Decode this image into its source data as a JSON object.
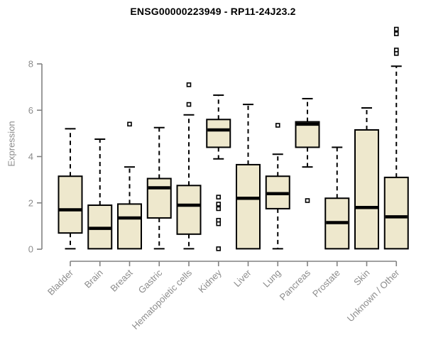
{
  "title": "ENSG00000223949 - RP11-24J23.2",
  "chart_data": {
    "type": "boxplot",
    "title": "ENSG00000223949 - RP11-24J23.2",
    "ylabel": "Expression",
    "xlabel": "",
    "ylim": [
      0,
      8
    ],
    "yticks": [
      0,
      2,
      4,
      6,
      8
    ],
    "grid": false,
    "legend": "none",
    "categories": [
      "Bladder",
      "Brain",
      "Breast",
      "Gastric",
      "Hematopoietic cells",
      "Kidney",
      "Liver",
      "Lung",
      "Pancreas",
      "Prostate",
      "Skin",
      "Unknown / Other"
    ],
    "series": [
      {
        "name": "Bladder",
        "whisker_low": 0.02,
        "q1": 0.7,
        "median": 1.7,
        "q3": 3.15,
        "whisker_high": 5.2,
        "outliers": []
      },
      {
        "name": "Brain",
        "whisker_low": 0.02,
        "q1": 0.02,
        "median": 0.9,
        "q3": 1.9,
        "whisker_high": 4.75,
        "outliers": []
      },
      {
        "name": "Breast",
        "whisker_low": 0.02,
        "q1": 0.02,
        "median": 1.35,
        "q3": 1.95,
        "whisker_high": 3.55,
        "outliers": [
          5.4
        ]
      },
      {
        "name": "Gastric",
        "whisker_low": 0.02,
        "q1": 1.35,
        "median": 2.65,
        "q3": 3.05,
        "whisker_high": 5.25,
        "outliers": []
      },
      {
        "name": "Hematopoietic cells",
        "whisker_low": 0.02,
        "q1": 0.65,
        "median": 1.9,
        "q3": 2.75,
        "whisker_high": 5.8,
        "outliers": [
          7.1,
          6.25
        ]
      },
      {
        "name": "Kidney",
        "whisker_low": 3.9,
        "q1": 4.4,
        "median": 5.15,
        "q3": 5.6,
        "whisker_high": 6.65,
        "outliers": [
          2.25,
          1.95,
          1.75,
          1.25,
          1.1,
          0.02
        ]
      },
      {
        "name": "Liver",
        "whisker_low": 0.02,
        "q1": 0.02,
        "median": 2.2,
        "q3": 3.65,
        "whisker_high": 6.25,
        "outliers": []
      },
      {
        "name": "Lung",
        "whisker_low": 0.02,
        "q1": 1.75,
        "median": 2.4,
        "q3": 3.15,
        "whisker_high": 4.1,
        "outliers": [
          5.35
        ]
      },
      {
        "name": "Pancreas",
        "whisker_low": 3.55,
        "q1": 4.4,
        "median": 5.4,
        "q3": 5.5,
        "whisker_high": 6.5,
        "outliers": [
          2.1
        ]
      },
      {
        "name": "Prostate",
        "whisker_low": 0.02,
        "q1": 0.02,
        "median": 1.15,
        "q3": 2.2,
        "whisker_high": 4.4,
        "outliers": []
      },
      {
        "name": "Skin",
        "whisker_low": 0.02,
        "q1": 0.02,
        "median": 1.8,
        "q3": 5.15,
        "whisker_high": 6.1,
        "outliers": []
      },
      {
        "name": "Unknown / Other",
        "whisker_low": 0.02,
        "q1": 0.02,
        "median": 1.4,
        "q3": 3.1,
        "whisker_high": 7.9,
        "outliers": [
          9.5,
          9.3,
          8.6,
          8.45
        ]
      }
    ]
  },
  "colors": {
    "box_fill": "#EEE8CD",
    "box_border": "#000000",
    "median": "#000000",
    "whisker": "#000000",
    "outlier_stroke": "#000000",
    "outlier_fill": "#FFFFFF",
    "axis": "#828282",
    "tick_label": "#8C8C8C",
    "title": "#000000",
    "background": "#FFFFFF"
  }
}
